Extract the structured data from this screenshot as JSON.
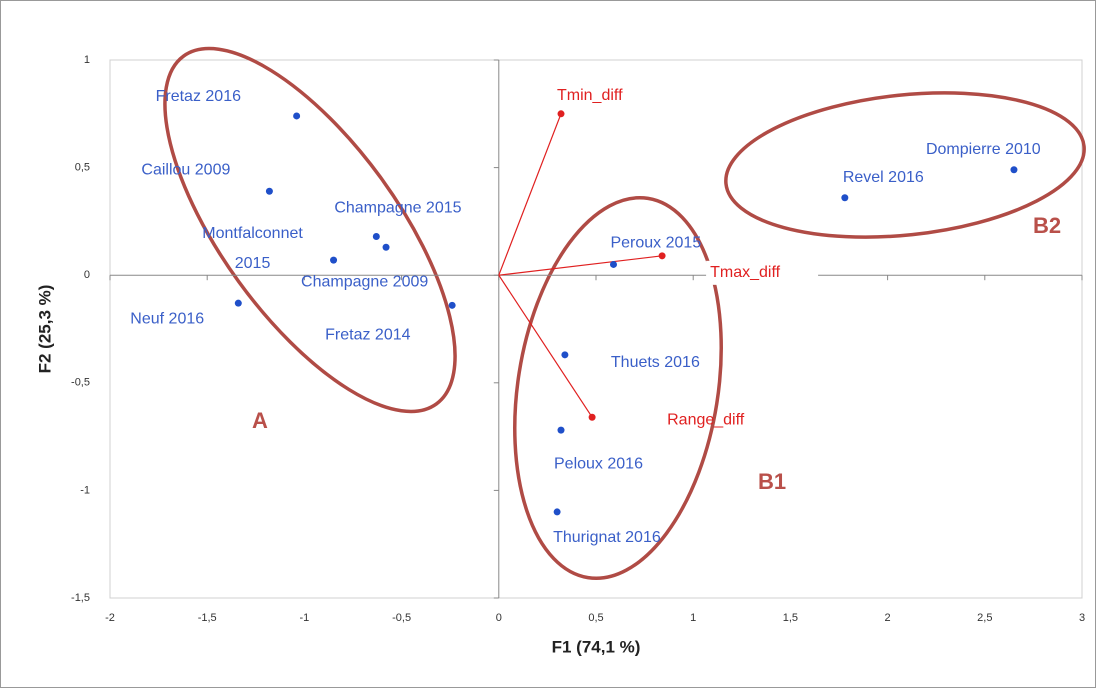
{
  "chart_data": {
    "type": "scatter",
    "xlabel": "F1 (74,1 %)",
    "ylabel": "F2 (25,3 %)",
    "xlim": [
      -2,
      3
    ],
    "ylim": [
      -1.5,
      1
    ],
    "xticks": [
      -2,
      {
        "value": -1.5,
        "label": "-1,5"
      },
      -1,
      {
        "value": -0.5,
        "label": "-0,5"
      },
      0,
      {
        "value": 0.5,
        "label": "0,5"
      },
      1,
      {
        "value": 1.5,
        "label": "1,5"
      },
      2,
      {
        "value": 2.5,
        "label": "2,5"
      },
      3
    ],
    "yticks": [
      {
        "value": -1.5,
        "label": "-1,5"
      },
      -1,
      {
        "value": -0.5,
        "label": "-0,5"
      },
      0,
      {
        "value": 0.5,
        "label": "0,5"
      },
      1
    ],
    "observations": {
      "color": "#1f4fc9",
      "labels": [
        "Fretaz  2016",
        "Caillou 2009",
        "Champagne  2015",
        "Champagne 2009",
        "Montfalconnet 2015",
        "Neuf 2016",
        "Fretaz  2014",
        "Peroux 2015",
        "Thuets 2016",
        "Peloux 2016",
        "Thurignat 2016",
        "Revel  2016",
        "Dompierre  2010"
      ],
      "x": [
        -1.04,
        -1.18,
        -0.63,
        -0.58,
        -0.85,
        -1.34,
        -0.24,
        0.59,
        0.34,
        0.32,
        0.3,
        1.78,
        2.65
      ],
      "y": [
        0.74,
        0.39,
        0.18,
        0.13,
        0.07,
        -0.13,
        -0.14,
        0.05,
        -0.37,
        -0.72,
        -1.1,
        0.36,
        0.49
      ]
    },
    "variables": {
      "color": "#e02020",
      "labels": [
        "Tmin_diff",
        "Tmax_diff",
        "Range_diff"
      ],
      "x": [
        0.32,
        0.84,
        0.48
      ],
      "y": [
        0.75,
        0.09,
        -0.66
      ]
    },
    "groups": [
      "A",
      "B1",
      "B2"
    ]
  }
}
